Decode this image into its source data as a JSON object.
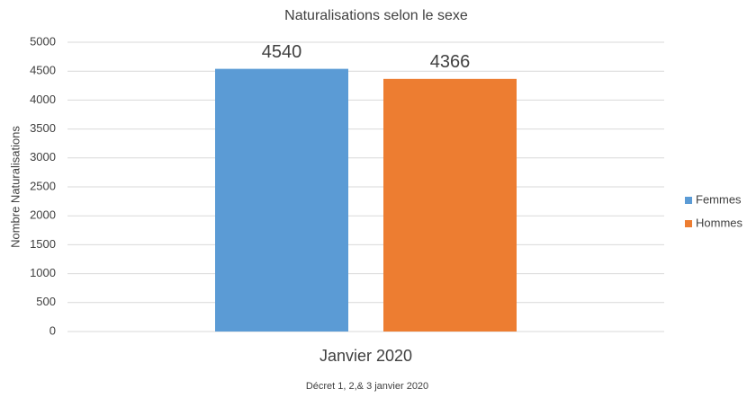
{
  "chart_data": {
    "type": "bar",
    "title": "Naturalisations selon le sexe",
    "y_label": "Nombre Naturalisations",
    "x_label": "Décret 1, 2,& 3 janvier 2020",
    "categories": [
      "Janvier 2020"
    ],
    "series": [
      {
        "name": "Femmes",
        "color": "#5b9bd5",
        "values": [
          4540
        ]
      },
      {
        "name": "Hommes",
        "color": "#ed7d31",
        "values": [
          4366
        ]
      }
    ],
    "ylim": [
      0,
      5000
    ],
    "yticks": [
      0,
      500,
      1000,
      1500,
      2000,
      2500,
      3000,
      3500,
      4000,
      4500,
      5000
    ],
    "grid": true,
    "legend": "right",
    "data_labels": true
  }
}
